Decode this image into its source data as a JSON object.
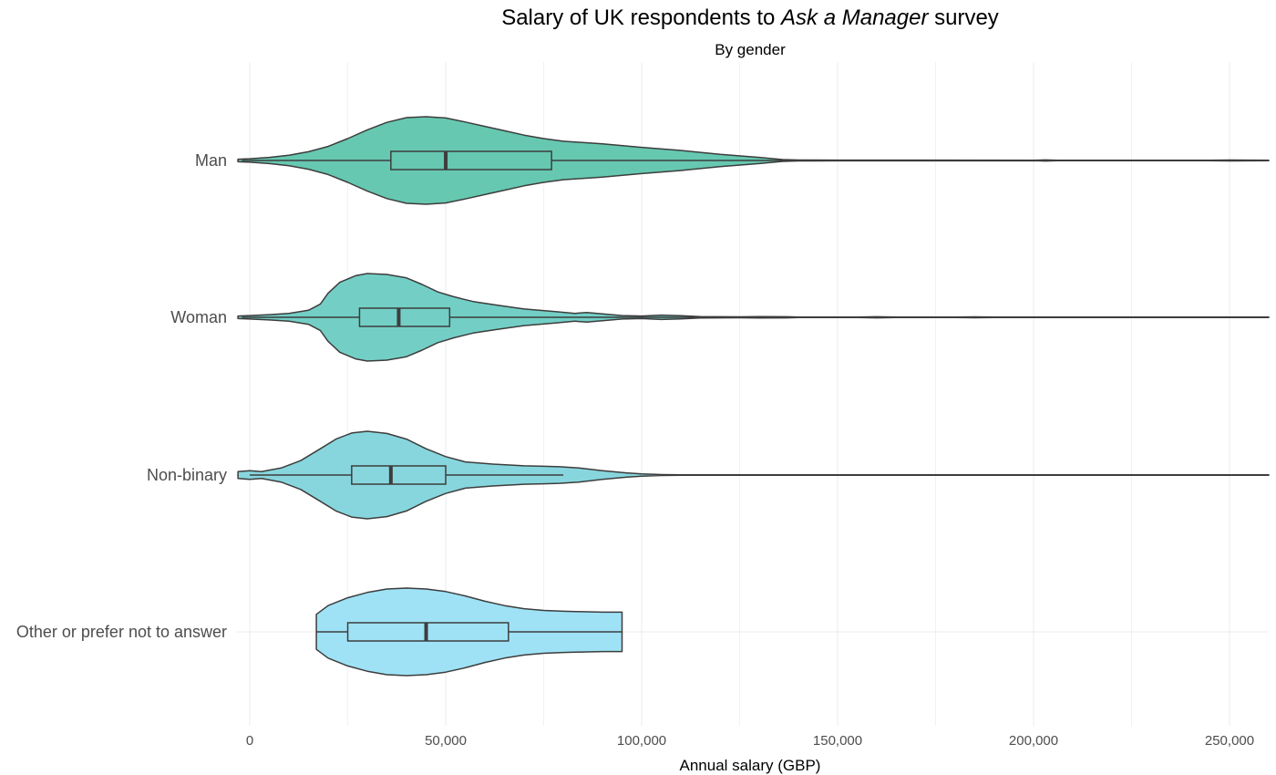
{
  "chart_data": {
    "type": "violin",
    "title_prefix": "Salary of UK respondents to ",
    "title_italic": "Ask a Manager",
    "title_suffix": " survey",
    "subtitle": "By gender",
    "xlabel": "Annual salary (GBP)",
    "ylabel": "",
    "xlim": [
      -3500,
      260000
    ],
    "x_ticks": [
      0,
      50000,
      100000,
      150000,
      200000,
      250000
    ],
    "x_tick_labels": [
      "0",
      "50,000",
      "100,000",
      "150,000",
      "200,000",
      "250,000"
    ],
    "grid": true,
    "legend": "none",
    "categories": [
      "Man",
      "Woman",
      "Non-binary",
      "Other or prefer not to answer"
    ],
    "series": [
      {
        "category": "Man",
        "color": "#66c8b0",
        "min": -3000,
        "max": 260000,
        "box": {
          "q1": 36000,
          "median": 50000,
          "q3": 77000,
          "whisker_low": -2000,
          "whisker_high": 260000
        },
        "density": [
          [
            -3000,
            0.03
          ],
          [
            0,
            0.04
          ],
          [
            5000,
            0.07
          ],
          [
            10000,
            0.12
          ],
          [
            15000,
            0.2
          ],
          [
            20000,
            0.32
          ],
          [
            25000,
            0.5
          ],
          [
            30000,
            0.7
          ],
          [
            35000,
            0.87
          ],
          [
            40000,
            0.98
          ],
          [
            45000,
            1.0
          ],
          [
            50000,
            0.97
          ],
          [
            55000,
            0.88
          ],
          [
            60000,
            0.78
          ],
          [
            65000,
            0.68
          ],
          [
            70000,
            0.58
          ],
          [
            75000,
            0.5
          ],
          [
            80000,
            0.44
          ],
          [
            90000,
            0.38
          ],
          [
            100000,
            0.3
          ],
          [
            110000,
            0.23
          ],
          [
            120000,
            0.14
          ],
          [
            130000,
            0.07
          ],
          [
            136000,
            0.02
          ],
          [
            140000,
            0.01
          ],
          [
            150000,
            0.008
          ],
          [
            200000,
            0.006
          ],
          [
            203000,
            0.012
          ],
          [
            206000,
            0.004
          ],
          [
            245000,
            0.004
          ],
          [
            250000,
            0.01
          ],
          [
            260000,
            0.004
          ]
        ]
      },
      {
        "category": "Woman",
        "color": "#73cfc6",
        "min": -3000,
        "max": 260000,
        "box": {
          "q1": 28000,
          "median": 38000,
          "q3": 51000,
          "whisker_low": -2000,
          "whisker_high": 260000
        },
        "density": [
          [
            -3000,
            0.03
          ],
          [
            0,
            0.04
          ],
          [
            5000,
            0.06
          ],
          [
            10000,
            0.09
          ],
          [
            15000,
            0.16
          ],
          [
            18000,
            0.3
          ],
          [
            20000,
            0.55
          ],
          [
            23000,
            0.8
          ],
          [
            27000,
            0.95
          ],
          [
            30000,
            1.0
          ],
          [
            35000,
            0.98
          ],
          [
            40000,
            0.9
          ],
          [
            44000,
            0.75
          ],
          [
            48000,
            0.58
          ],
          [
            52000,
            0.47
          ],
          [
            57000,
            0.36
          ],
          [
            63000,
            0.28
          ],
          [
            70000,
            0.19
          ],
          [
            78000,
            0.13
          ],
          [
            83000,
            0.09
          ],
          [
            86000,
            0.11
          ],
          [
            90000,
            0.08
          ],
          [
            95000,
            0.04
          ],
          [
            100000,
            0.03
          ],
          [
            105000,
            0.05
          ],
          [
            110000,
            0.035
          ],
          [
            115000,
            0.015
          ],
          [
            125000,
            0.01
          ],
          [
            130000,
            0.015
          ],
          [
            137000,
            0.012
          ],
          [
            140000,
            0.006
          ],
          [
            155000,
            0.005
          ],
          [
            160000,
            0.012
          ],
          [
            165000,
            0.005
          ],
          [
            180000,
            0.005
          ],
          [
            185000,
            0.01
          ],
          [
            190000,
            0.004
          ],
          [
            260000,
            0.004
          ]
        ]
      },
      {
        "category": "Non-binary",
        "color": "#88d6dd",
        "min": -3000,
        "max": 260000,
        "box": {
          "q1": 26000,
          "median": 36000,
          "q3": 50000,
          "whisker_low": 0,
          "whisker_high": 80000
        },
        "density": [
          [
            -3000,
            0.08
          ],
          [
            0,
            0.1
          ],
          [
            3000,
            0.08
          ],
          [
            8000,
            0.16
          ],
          [
            13000,
            0.33
          ],
          [
            18000,
            0.6
          ],
          [
            22000,
            0.82
          ],
          [
            26000,
            0.96
          ],
          [
            30000,
            1.0
          ],
          [
            35000,
            0.95
          ],
          [
            40000,
            0.82
          ],
          [
            45000,
            0.6
          ],
          [
            50000,
            0.42
          ],
          [
            55000,
            0.3
          ],
          [
            62000,
            0.25
          ],
          [
            70000,
            0.21
          ],
          [
            75000,
            0.2
          ],
          [
            79000,
            0.19
          ],
          [
            84000,
            0.16
          ],
          [
            90000,
            0.1
          ],
          [
            96000,
            0.05
          ],
          [
            100000,
            0.025
          ],
          [
            105000,
            0.01
          ],
          [
            110000,
            0.004
          ],
          [
            260000,
            0.004
          ]
        ]
      },
      {
        "category": "Other or prefer not to answer",
        "color": "#9fe2f6",
        "min": 17000,
        "max": 95000,
        "box": {
          "q1": 25000,
          "median": 45000,
          "q3": 66000,
          "whisker_low": 17000,
          "whisker_high": 95000
        },
        "density": [
          [
            17000,
            0.4
          ],
          [
            20000,
            0.6
          ],
          [
            25000,
            0.78
          ],
          [
            30000,
            0.9
          ],
          [
            35000,
            0.98
          ],
          [
            40000,
            1.0
          ],
          [
            45000,
            0.98
          ],
          [
            50000,
            0.92
          ],
          [
            55000,
            0.82
          ],
          [
            60000,
            0.7
          ],
          [
            65000,
            0.6
          ],
          [
            70000,
            0.53
          ],
          [
            75000,
            0.49
          ],
          [
            80000,
            0.47
          ],
          [
            85000,
            0.46
          ],
          [
            90000,
            0.45
          ],
          [
            95000,
            0.45
          ]
        ]
      }
    ]
  }
}
